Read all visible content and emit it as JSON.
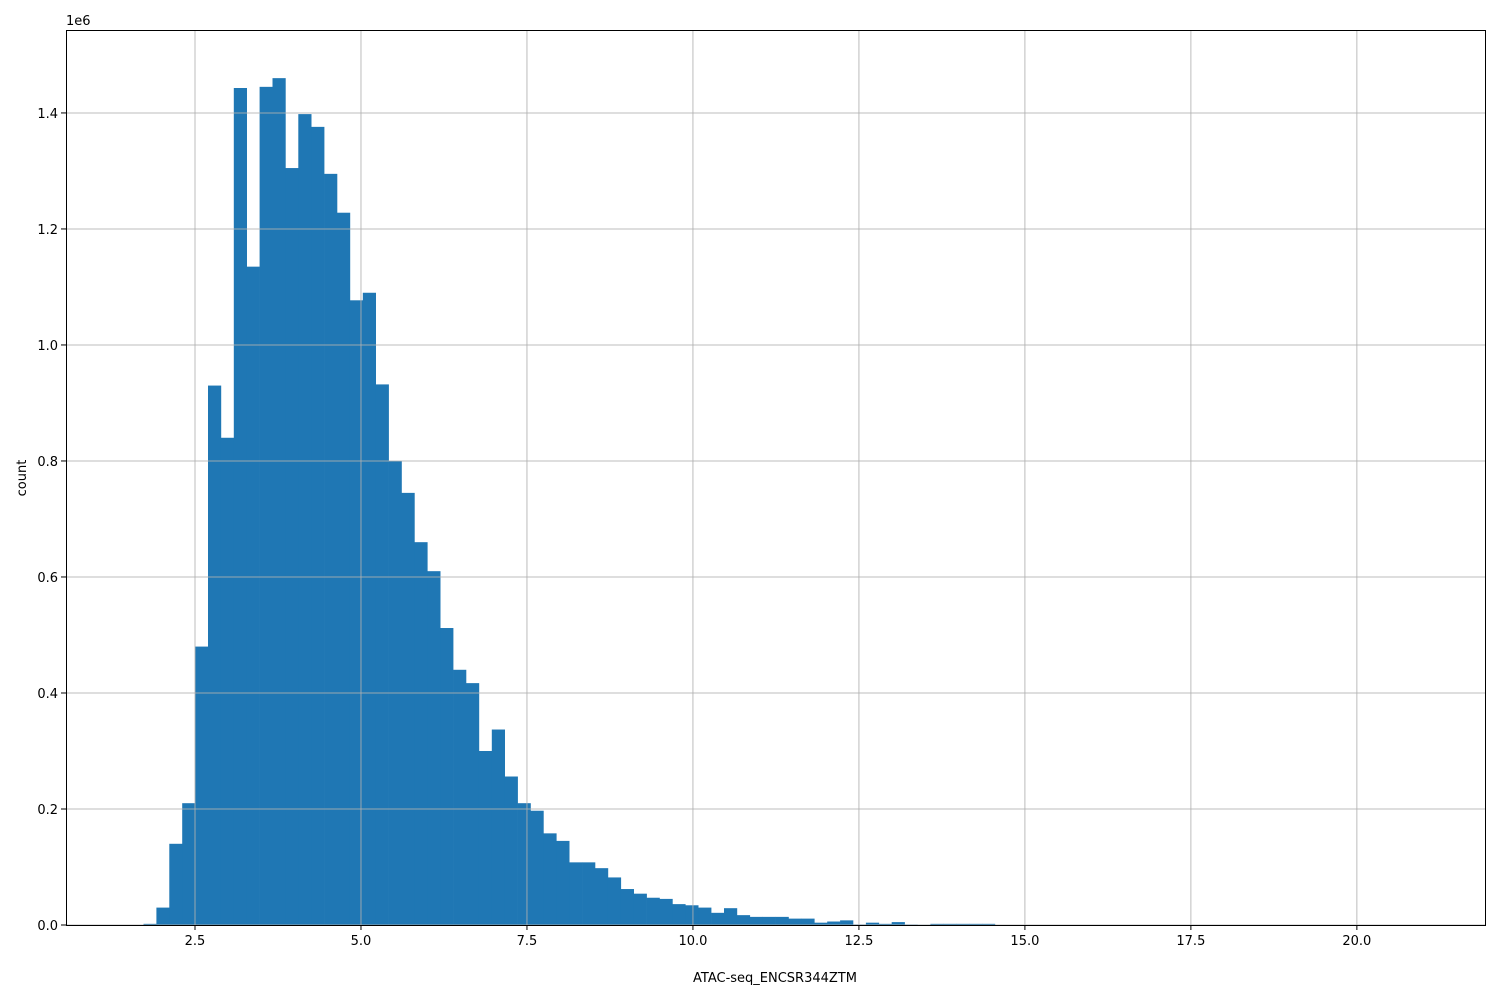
{
  "chart_data": {
    "type": "bar",
    "subtype": "histogram",
    "title": "",
    "xlabel": "ATAC-seq_ENCSR344ZTM",
    "ylabel": "count",
    "y_offset_label": "1e6",
    "bin_range": [
      1.53,
      20.96
    ],
    "bins": 100,
    "values_unit": "1e6",
    "values": [
      0,
      0.002,
      0.03,
      0.14,
      0.21,
      0.48,
      0.93,
      0.84,
      1.443,
      1.135,
      1.445,
      1.46,
      1.305,
      1.398,
      1.376,
      1.295,
      1.228,
      1.077,
      1.09,
      0.932,
      0.8,
      0.745,
      0.66,
      0.61,
      0.512,
      0.44,
      0.417,
      0.3,
      0.337,
      0.256,
      0.21,
      0.197,
      0.158,
      0.145,
      0.108,
      0.108,
      0.098,
      0.082,
      0.062,
      0.054,
      0.047,
      0.045,
      0.036,
      0.034,
      0.03,
      0.021,
      0.029,
      0.017,
      0.014,
      0.014,
      0.014,
      0.011,
      0.011,
      0.004,
      0.006,
      0.008,
      0.001,
      0.004,
      0.002,
      0.005,
      0.001,
      0.0005,
      0.002,
      0.002,
      0.002,
      0.002,
      0.002,
      0,
      0,
      0,
      0,
      0,
      0,
      0,
      0,
      0,
      0,
      0,
      0,
      0,
      0,
      0,
      0,
      0,
      0,
      0,
      0,
      0,
      0,
      0,
      0,
      0,
      0,
      0,
      0,
      0,
      0,
      0,
      0,
      0
    ],
    "xlim": [
      0.557,
      21.93
    ],
    "ylim": [
      0,
      1.543
    ],
    "xticks": [
      "2.5",
      "5.0",
      "7.5",
      "10.0",
      "12.5",
      "15.0",
      "17.5",
      "20.0"
    ],
    "yticks": [
      "0.0",
      "0.2",
      "0.4",
      "0.6",
      "0.8",
      "1.0",
      "1.2",
      "1.4"
    ],
    "grid": true,
    "bar_color": "#1f77b4",
    "grid_color": "#b0b0b0"
  }
}
